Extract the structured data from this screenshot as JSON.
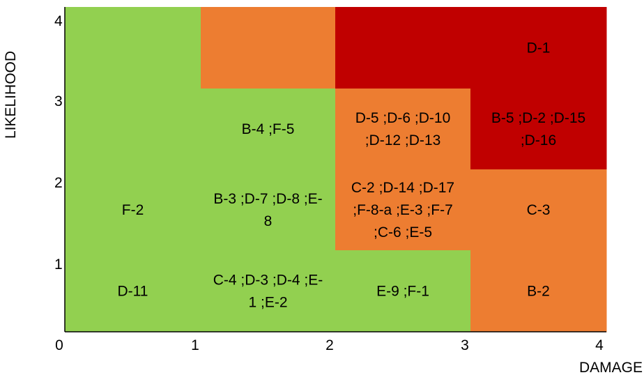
{
  "chart_data": {
    "type": "heatmap",
    "title": "",
    "xlabel": "DAMAGE",
    "ylabel": "LIKELIHOOD",
    "xlim": [
      0,
      4
    ],
    "ylim": [
      0,
      4
    ],
    "x_ticks": [
      "0",
      "1",
      "2",
      "3",
      "4"
    ],
    "y_ticks": [
      "1",
      "2",
      "3",
      "4"
    ],
    "grid": false,
    "colors": {
      "low": "#92d050",
      "medium": "#ed7d31",
      "high": "#c00000"
    },
    "cells": [
      {
        "x": 1,
        "y": 4,
        "risk": "low",
        "label": ""
      },
      {
        "x": 2,
        "y": 4,
        "risk": "medium",
        "label": ""
      },
      {
        "x": 3,
        "y": 4,
        "risk": "high",
        "label": ""
      },
      {
        "x": 4,
        "y": 4,
        "risk": "high",
        "label": "D-1"
      },
      {
        "x": 1,
        "y": 3,
        "risk": "low",
        "label": ""
      },
      {
        "x": 2,
        "y": 3,
        "risk": "low",
        "label": "B-4 ;F-5"
      },
      {
        "x": 3,
        "y": 3,
        "risk": "medium",
        "label": "D-5 ;D-6 ;D-10\n;D-12 ;D-13"
      },
      {
        "x": 4,
        "y": 3,
        "risk": "high",
        "label": "B-5 ;D-2 ;D-15\n;D-16"
      },
      {
        "x": 1,
        "y": 2,
        "risk": "low",
        "label": "F-2"
      },
      {
        "x": 2,
        "y": 2,
        "risk": "low",
        "label": "B-3 ;D-7 ;D-8 ;E-\n8"
      },
      {
        "x": 3,
        "y": 2,
        "risk": "medium",
        "label": "C-2 ;D-14 ;D-17\n;F-8-a ;E-3 ;F-7\n;C-6 ;E-5"
      },
      {
        "x": 4,
        "y": 2,
        "risk": "medium",
        "label": "C-3"
      },
      {
        "x": 1,
        "y": 1,
        "risk": "low",
        "label": "D-11"
      },
      {
        "x": 2,
        "y": 1,
        "risk": "low",
        "label": "C-4 ;D-3 ;D-4 ;E-\n1 ;E-2"
      },
      {
        "x": 3,
        "y": 1,
        "risk": "low",
        "label": "E-9 ;F-1"
      },
      {
        "x": 4,
        "y": 1,
        "risk": "medium",
        "label": "B-2"
      }
    ]
  }
}
